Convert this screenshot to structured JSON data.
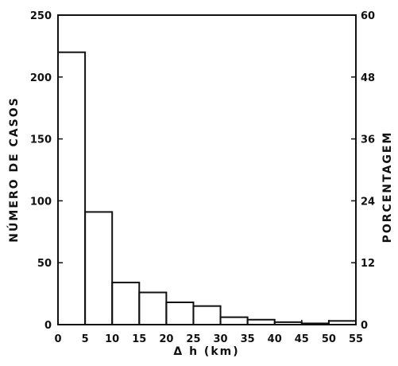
{
  "chart_data": {
    "type": "bar",
    "style": "step-histogram",
    "xlabel": "Δ h (km)",
    "ylabel": "NÚMERO DE CASOS",
    "y2label": "PORCENTAGEM",
    "xlim": [
      0,
      55
    ],
    "ylim": [
      0,
      250
    ],
    "y2lim": [
      0,
      60
    ],
    "x_ticks": [
      "0",
      "5",
      "10",
      "15",
      "20",
      "25",
      "30",
      "35",
      "40",
      "45",
      "50",
      "55"
    ],
    "y_ticks": [
      "0",
      "50",
      "100",
      "150",
      "200",
      "250"
    ],
    "y2_ticks": [
      "0",
      "12",
      "24",
      "36",
      "48",
      "60"
    ],
    "bin_edges": [
      0,
      5,
      10,
      15,
      20,
      25,
      30,
      35,
      40,
      45,
      50,
      55
    ],
    "values": [
      220,
      91,
      34,
      26,
      18,
      15,
      6,
      4,
      2,
      1,
      3
    ],
    "grid": false
  }
}
